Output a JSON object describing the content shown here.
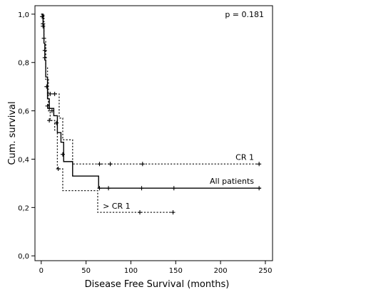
{
  "chart_data": {
    "type": "line",
    "subtype": "kaplan-meier-step",
    "xlabel": "Disease Free Survival (months)",
    "ylabel": "Cum. survival",
    "xlim": [
      -7,
      258
    ],
    "ylim": [
      -0.02,
      1.035
    ],
    "xticks": [
      0,
      50,
      100,
      150,
      200,
      250
    ],
    "yticks": [
      0.0,
      0.2,
      0.4,
      0.6,
      0.8,
      1.0
    ],
    "ytick_labels": [
      "0,0",
      "0,2",
      "0,4",
      "0,6",
      "0,8",
      "1,0"
    ],
    "annotation": "p = 0.181",
    "grid": false,
    "series": [
      {
        "name": "CR 1",
        "style": "dotted",
        "steps": [
          [
            0,
            1.0
          ],
          [
            3,
            0.89
          ],
          [
            5,
            0.78
          ],
          [
            7,
            0.67
          ],
          [
            20,
            0.57
          ],
          [
            24,
            0.48
          ],
          [
            35,
            0.38
          ],
          [
            245,
            0.38
          ]
        ],
        "censored": [
          [
            10,
            0.67
          ],
          [
            15,
            0.67
          ],
          [
            65,
            0.38
          ],
          [
            77,
            0.38
          ],
          [
            113,
            0.38
          ],
          [
            243,
            0.38
          ]
        ]
      },
      {
        "name": "All patients",
        "style": "solid",
        "steps": [
          [
            0,
            1.0
          ],
          [
            2,
            0.95
          ],
          [
            3,
            0.88
          ],
          [
            4,
            0.81
          ],
          [
            5,
            0.74
          ],
          [
            7,
            0.65
          ],
          [
            9,
            0.61
          ],
          [
            14,
            0.58
          ],
          [
            18,
            0.51
          ],
          [
            22,
            0.47
          ],
          [
            25,
            0.39
          ],
          [
            35,
            0.33
          ],
          [
            64,
            0.28
          ],
          [
            245,
            0.28
          ]
        ],
        "censored": [
          [
            1,
            0.99
          ],
          [
            2,
            0.96
          ],
          [
            3,
            0.9
          ],
          [
            4,
            0.85
          ],
          [
            6,
            0.7
          ],
          [
            9,
            0.61
          ],
          [
            12,
            0.6
          ],
          [
            17,
            0.55
          ],
          [
            24,
            0.42
          ],
          [
            65,
            0.28
          ],
          [
            75,
            0.28
          ],
          [
            112,
            0.28
          ],
          [
            148,
            0.28
          ],
          [
            243,
            0.28
          ]
        ]
      },
      {
        "name": "> CR 1",
        "style": "dotted",
        "steps": [
          [
            0,
            1.0
          ],
          [
            3,
            0.88
          ],
          [
            5,
            0.73
          ],
          [
            8,
            0.6
          ],
          [
            10,
            0.56
          ],
          [
            15,
            0.52
          ],
          [
            18,
            0.36
          ],
          [
            24,
            0.27
          ],
          [
            63,
            0.18
          ],
          [
            148,
            0.18
          ]
        ],
        "censored": [
          [
            2,
            0.95
          ],
          [
            4,
            0.82
          ],
          [
            7,
            0.62
          ],
          [
            9,
            0.56
          ],
          [
            19,
            0.36
          ],
          [
            110,
            0.18
          ],
          [
            147,
            0.18
          ]
        ]
      }
    ]
  }
}
